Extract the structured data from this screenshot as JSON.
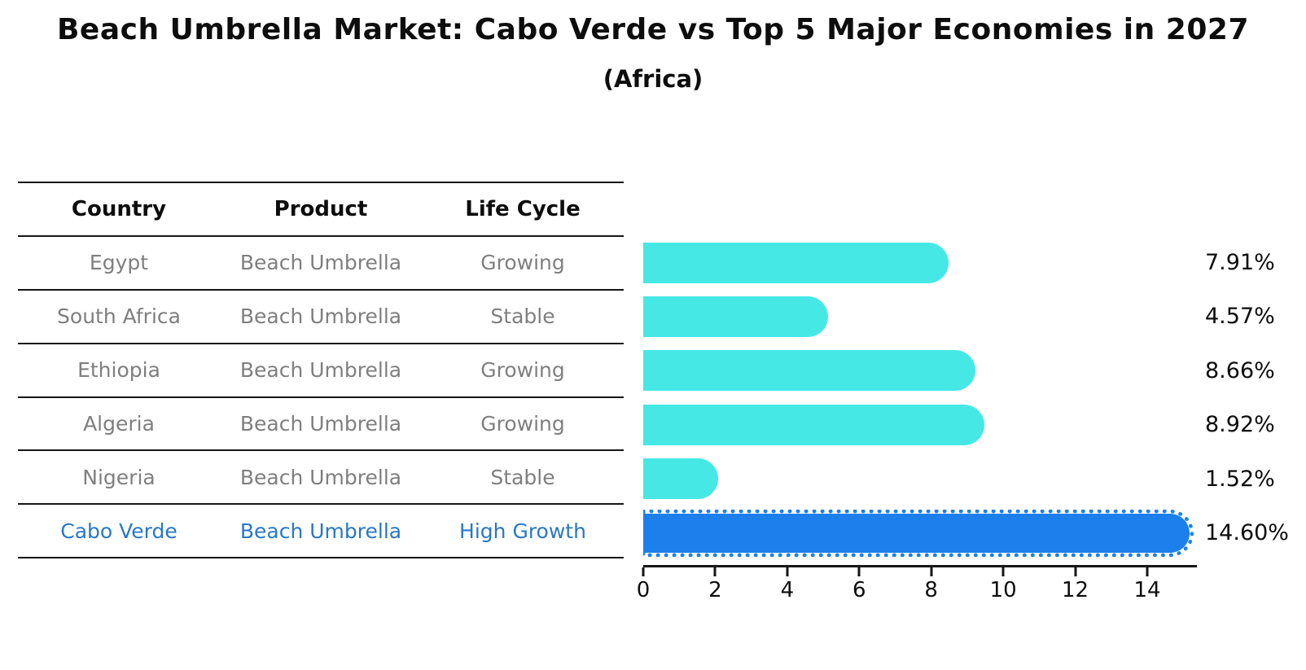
{
  "title": "Beach Umbrella Market: Cabo Verde vs Top 5 Major Economies in 2027",
  "subtitle": "(Africa)",
  "table": {
    "headers": [
      "Country",
      "Product",
      "Life Cycle"
    ],
    "rows": [
      {
        "country": "Egypt",
        "product": "Beach Umbrella",
        "life_cycle": "Growing",
        "value": 7.91,
        "value_label": "7.91%",
        "highlight": false
      },
      {
        "country": "South Africa",
        "product": "Beach Umbrella",
        "life_cycle": "Stable",
        "value": 4.57,
        "value_label": "4.57%",
        "highlight": false
      },
      {
        "country": "Ethiopia",
        "product": "Beach Umbrella",
        "life_cycle": "Growing",
        "value": 8.66,
        "value_label": "8.66%",
        "highlight": false
      },
      {
        "country": "Algeria",
        "product": "Beach Umbrella",
        "life_cycle": "Growing",
        "value": 8.92,
        "value_label": "8.92%",
        "highlight": false
      },
      {
        "country": "Nigeria",
        "product": "Beach Umbrella",
        "life_cycle": "Stable",
        "value": 1.52,
        "value_label": "1.52%",
        "highlight": false
      },
      {
        "country": "Cabo Verde",
        "product": "Beach Umbrella",
        "life_cycle": "High Growth",
        "value": 14.6,
        "value_label": "14.60%",
        "highlight": true
      }
    ]
  },
  "chart_data": {
    "type": "bar",
    "orientation": "horizontal",
    "title": "Beach Umbrella Market: Cabo Verde vs Top 5 Major Economies in 2027 (Africa)",
    "categories": [
      "Egypt",
      "South Africa",
      "Ethiopia",
      "Algeria",
      "Nigeria",
      "Cabo Verde"
    ],
    "values": [
      7.91,
      4.57,
      8.66,
      8.92,
      1.52,
      14.6
    ],
    "data_labels": [
      "7.91%",
      "4.57%",
      "8.66%",
      "8.92%",
      "1.52%",
      "14.60%"
    ],
    "xlabel": "",
    "ylabel": "",
    "xlim": [
      0,
      15.38
    ],
    "xticks": [
      0,
      2,
      4,
      6,
      8,
      10,
      12,
      14
    ],
    "grid": false,
    "legend": false,
    "highlight_index": 5
  },
  "axis": {
    "max": 15.38,
    "ticks": [
      {
        "value": 0,
        "label": "0"
      },
      {
        "value": 2,
        "label": "2"
      },
      {
        "value": 4,
        "label": "4"
      },
      {
        "value": 6,
        "label": "6"
      },
      {
        "value": 8,
        "label": "8"
      },
      {
        "value": 10,
        "label": "10"
      },
      {
        "value": 12,
        "label": "12"
      },
      {
        "value": 14,
        "label": "14"
      }
    ]
  },
  "colors": {
    "bar": "#46e8e6",
    "highlight_bar": "#1b80ec",
    "highlight_text": "#2878c8",
    "muted_text": "#7f7f7f",
    "text": "#0d0d0d"
  }
}
